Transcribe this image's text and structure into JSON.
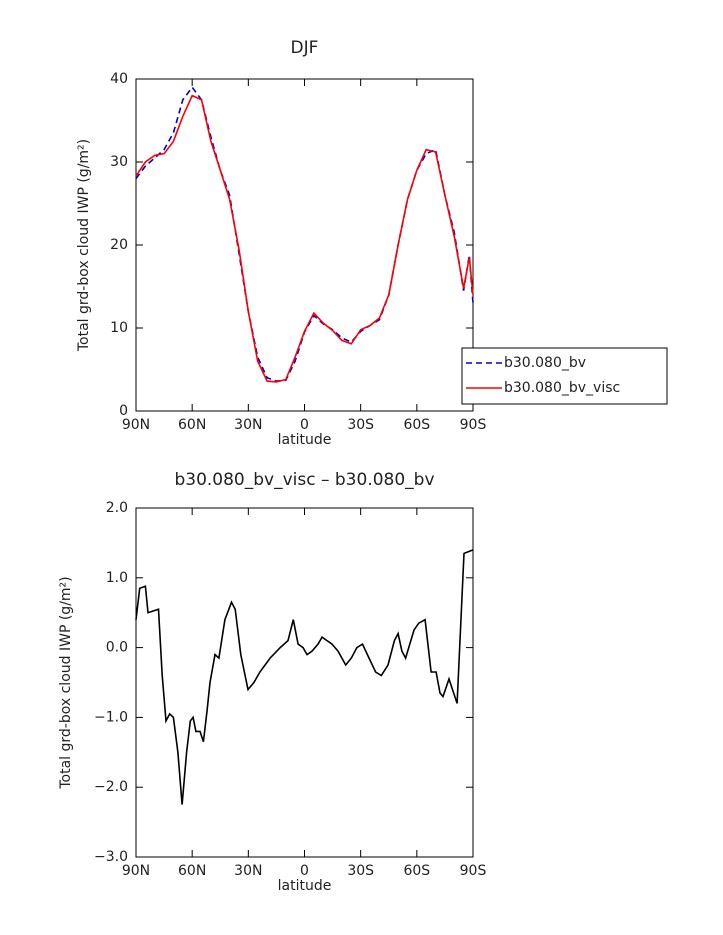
{
  "chart_data": [
    {
      "type": "line",
      "title": "DJF",
      "xlabel": "latitude",
      "ylabel": "Total grd-box cloud IWP (g/m²)",
      "x": [
        90,
        85,
        80,
        75,
        70,
        65,
        60,
        55,
        50,
        45,
        40,
        35,
        30,
        25,
        20,
        15,
        10,
        5,
        0,
        -5,
        -10,
        -15,
        -20,
        -25,
        -30,
        -35,
        -40,
        -45,
        -50,
        -55,
        -60,
        -65,
        -70,
        -75,
        -80,
        -85,
        -88,
        -90
      ],
      "series": [
        {
          "name": "b30.080_bv",
          "color": "#0000cc",
          "dash": true,
          "values": [
            28,
            29.5,
            30.5,
            31.5,
            33.5,
            37.5,
            39,
            37.5,
            33,
            29,
            26,
            19,
            12,
            6.5,
            4,
            3.6,
            3.7,
            6,
            9.5,
            11.5,
            10.5,
            9.8,
            8.8,
            8.3,
            9.6,
            10.3,
            11,
            14,
            20,
            25.5,
            29,
            31,
            31.5,
            26,
            21.5,
            14.5,
            18.8,
            13
          ]
        },
        {
          "name": "b30.080_bv_visc",
          "color": "#ff0000",
          "dash": false,
          "values": [
            28.3,
            30,
            30.8,
            31,
            32.5,
            35.5,
            38,
            37.5,
            32.5,
            29,
            25.5,
            19.5,
            12,
            6,
            3.6,
            3.5,
            3.8,
            6.5,
            9.6,
            11.8,
            10.6,
            9.7,
            8.5,
            8.1,
            9.8,
            10.3,
            11.2,
            14,
            20,
            25.5,
            29,
            31.5,
            31.2,
            26,
            21,
            14.8,
            18.5,
            14
          ]
        }
      ],
      "xlim": [
        90,
        -90
      ],
      "xticks": [
        {
          "value": 90,
          "label": "90N"
        },
        {
          "value": 60,
          "label": "60N"
        },
        {
          "value": 30,
          "label": "30N"
        },
        {
          "value": 0,
          "label": "0"
        },
        {
          "value": -30,
          "label": "30S"
        },
        {
          "value": -60,
          "label": "60S"
        },
        {
          "value": -90,
          "label": "90S"
        }
      ],
      "ylim": [
        0,
        40
      ],
      "yticks": [
        0,
        10,
        20,
        30,
        40
      ],
      "legend": "right"
    },
    {
      "type": "line",
      "title": "b30.080_bv_visc – b30.080_bv",
      "xlabel": "latitude",
      "ylabel": "Total grd-box cloud IWP (g/m²)",
      "x": [
        90,
        88,
        85,
        83.6,
        78,
        76,
        74,
        72,
        70,
        67.6,
        65.4,
        63,
        61,
        59.5,
        58,
        55.8,
        54,
        52,
        50.5,
        47.8,
        45.7,
        42.5,
        39,
        37,
        34,
        30.2,
        27,
        23.8,
        18.4,
        13,
        8.8,
        6,
        3.4,
        0.8,
        -1.4,
        -4,
        -7.2,
        -9.4,
        -12,
        -14.7,
        -17.9,
        -22,
        -25,
        -28,
        -31,
        -33.6,
        -38,
        -41,
        -44.6,
        -48,
        -50,
        -52,
        -54,
        -58.5,
        -61,
        -64.4,
        -67.6,
        -70.3,
        -72.4,
        -74,
        -77.2,
        -81.5,
        -85.2,
        -90
      ],
      "series": [
        {
          "name": null,
          "color": "#000000",
          "dash": false,
          "values": [
            0.4,
            0.85,
            0.88,
            0.5,
            0.55,
            -0.4,
            -1.05,
            -0.95,
            -1,
            -1.5,
            -2.25,
            -1.5,
            -1.05,
            -1,
            -1.2,
            -1.2,
            -1.35,
            -0.9,
            -0.5,
            -0.1,
            -0.15,
            0.4,
            0.65,
            0.55,
            -0.1,
            -0.6,
            -0.5,
            -0.35,
            -0.15,
            0,
            0.1,
            0.4,
            0.05,
            0,
            -0.1,
            -0.05,
            0.05,
            0.15,
            0.1,
            0.05,
            -0.05,
            -0.25,
            -0.15,
            0,
            0.05,
            -0.1,
            -0.35,
            -0.4,
            -0.25,
            0.1,
            0.2,
            -0.05,
            -0.15,
            0.25,
            0.35,
            0.4,
            -0.35,
            -0.35,
            -0.65,
            -0.7,
            -0.45,
            -0.8,
            1.35,
            1.4
          ]
        }
      ],
      "xlim": [
        90,
        -90
      ],
      "xticks": [
        {
          "value": 90,
          "label": "90N"
        },
        {
          "value": 60,
          "label": "60N"
        },
        {
          "value": 30,
          "label": "30N"
        },
        {
          "value": 0,
          "label": "0"
        },
        {
          "value": -30,
          "label": "30S"
        },
        {
          "value": -60,
          "label": "60S"
        },
        {
          "value": -90,
          "label": "90S"
        }
      ],
      "ylim": [
        -3,
        2
      ],
      "yticks": [
        {
          "value": -3,
          "label": "−3.0"
        },
        {
          "value": -2,
          "label": "−2.0"
        },
        {
          "value": -1,
          "label": "−1.0"
        },
        {
          "value": 0,
          "label": "0.0"
        },
        {
          "value": 1,
          "label": "1.0"
        },
        {
          "value": 2,
          "label": "2.0"
        }
      ]
    }
  ]
}
